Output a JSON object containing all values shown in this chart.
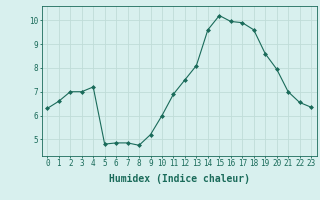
{
  "x": [
    0,
    1,
    2,
    3,
    4,
    5,
    6,
    7,
    8,
    9,
    10,
    11,
    12,
    13,
    14,
    15,
    16,
    17,
    18,
    19,
    20,
    21,
    22,
    23
  ],
  "y": [
    6.3,
    6.6,
    7.0,
    7.0,
    7.2,
    4.8,
    4.85,
    4.85,
    4.75,
    5.2,
    6.0,
    6.9,
    7.5,
    8.1,
    9.6,
    10.2,
    9.95,
    9.9,
    9.6,
    8.6,
    7.95,
    7.0,
    6.55,
    6.35
  ],
  "line_color": "#1a6b5a",
  "marker": "D",
  "marker_size": 2,
  "bg_color": "#d8f0ee",
  "grid_color": "#c0dcd8",
  "axis_color": "#1a6b5a",
  "xlabel": "Humidex (Indice chaleur)",
  "ylim": [
    4.3,
    10.6
  ],
  "xlim": [
    -0.5,
    23.5
  ],
  "yticks": [
    5,
    6,
    7,
    8,
    9,
    10
  ],
  "xticks": [
    0,
    1,
    2,
    3,
    4,
    5,
    6,
    7,
    8,
    9,
    10,
    11,
    12,
    13,
    14,
    15,
    16,
    17,
    18,
    19,
    20,
    21,
    22,
    23
  ],
  "tick_label_fontsize": 5.5,
  "xlabel_fontsize": 7
}
